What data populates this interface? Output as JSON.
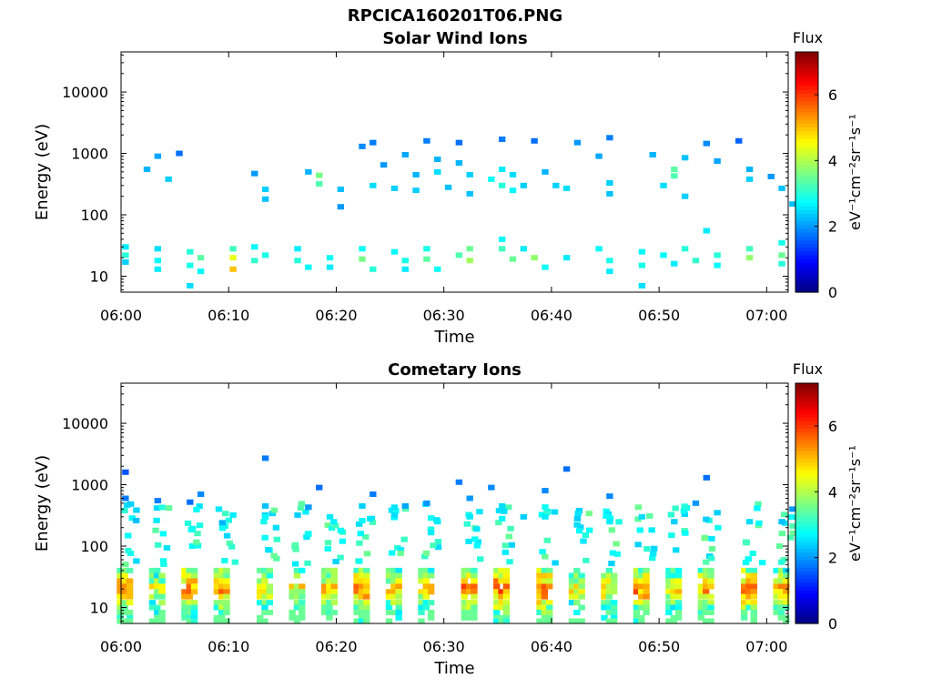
{
  "figure": {
    "title": "RPCICA160201T06.PNG"
  },
  "colors": {
    "background": "#ffffff",
    "axis": "#000000",
    "colormap": [
      "#00007f",
      "#0000ff",
      "#007fff",
      "#00ffff",
      "#7fff7f",
      "#ffff00",
      "#ff7f00",
      "#ff0000",
      "#7f0000"
    ]
  },
  "chart_data": [
    {
      "type": "heatmap",
      "title": "Solar Wind Ions",
      "xlabel": "Time",
      "ylabel": "Energy (eV)",
      "y_scale": "log",
      "xlim": [
        "06:00",
        "07:02"
      ],
      "ylim": [
        5.5,
        45000
      ],
      "x_ticks": [
        "06:00",
        "06:10",
        "06:20",
        "06:30",
        "06:40",
        "06:50",
        "07:00"
      ],
      "y_ticks": [
        "10",
        "100",
        "1000",
        "10000"
      ],
      "colorbar": {
        "label": "Flux",
        "unit": "eV⁻¹cm⁻²sr⁻¹s⁻¹",
        "range": [
          0,
          7.3
        ],
        "ticks": [
          "0",
          "2",
          "4",
          "6"
        ]
      },
      "cells": [
        [
          "06:00",
          30,
          2.6
        ],
        [
          "06:00",
          22,
          3.0
        ],
        [
          "06:00",
          17,
          2.4
        ],
        [
          "06:03",
          28,
          2.5
        ],
        [
          "06:03",
          18,
          2.7
        ],
        [
          "06:03",
          13,
          2.6
        ],
        [
          "06:06",
          25,
          3.0
        ],
        [
          "06:06",
          15,
          2.9
        ],
        [
          "06:06",
          7,
          2.5
        ],
        [
          "06:07",
          20,
          3.4
        ],
        [
          "06:07",
          12,
          2.7
        ],
        [
          "06:10",
          28,
          3.2
        ],
        [
          "06:10",
          20,
          4.4
        ],
        [
          "06:10",
          13,
          5.0
        ],
        [
          "06:12",
          30,
          2.7
        ],
        [
          "06:12",
          18,
          3.1
        ],
        [
          "06:13",
          22,
          2.9
        ],
        [
          "06:16",
          28,
          2.6
        ],
        [
          "06:16",
          18,
          3.0
        ],
        [
          "06:17",
          14,
          2.7
        ],
        [
          "06:19",
          20,
          2.8
        ],
        [
          "06:19",
          14,
          2.6
        ],
        [
          "06:22",
          28,
          2.8
        ],
        [
          "06:22",
          19,
          3.6
        ],
        [
          "06:23",
          13,
          3.0
        ],
        [
          "06:25",
          25,
          2.7
        ],
        [
          "06:26",
          18,
          2.9
        ],
        [
          "06:26",
          13,
          2.6
        ],
        [
          "06:28",
          28,
          2.9
        ],
        [
          "06:28",
          19,
          3.4
        ],
        [
          "06:29",
          13,
          2.8
        ],
        [
          "06:31",
          22,
          3.3
        ],
        [
          "06:32",
          28,
          3.5
        ],
        [
          "06:32",
          18,
          3.9
        ],
        [
          "06:35",
          40,
          2.7
        ],
        [
          "06:35",
          28,
          3.2
        ],
        [
          "06:36",
          19,
          3.5
        ],
        [
          "06:37",
          28,
          2.6
        ],
        [
          "06:38",
          20,
          3.8
        ],
        [
          "06:39",
          14,
          2.8
        ],
        [
          "06:41",
          20,
          2.6
        ],
        [
          "06:44",
          28,
          2.7
        ],
        [
          "06:45",
          18,
          2.9
        ],
        [
          "06:45",
          12,
          2.6
        ],
        [
          "06:48",
          25,
          2.7
        ],
        [
          "06:48",
          15,
          2.9
        ],
        [
          "06:48",
          7,
          2.5
        ],
        [
          "06:50",
          22,
          2.7
        ],
        [
          "06:51",
          16,
          2.6
        ],
        [
          "06:52",
          28,
          3.0
        ],
        [
          "06:53",
          18,
          3.1
        ],
        [
          "06:54",
          55,
          2.6
        ],
        [
          "06:55",
          22,
          3.0
        ],
        [
          "06:55",
          15,
          2.7
        ],
        [
          "06:58",
          28,
          3.2
        ],
        [
          "06:58",
          20,
          3.8
        ],
        [
          "07:01",
          35,
          2.9
        ],
        [
          "07:01",
          22,
          3.5
        ],
        [
          "07:01",
          16,
          3.0
        ],
        [
          "06:02",
          550,
          2.2
        ],
        [
          "06:03",
          900,
          2.1
        ],
        [
          "06:04",
          380,
          2.4
        ],
        [
          "06:05",
          1000,
          1.7
        ],
        [
          "06:12",
          470,
          2.0
        ],
        [
          "06:13",
          260,
          2.4
        ],
        [
          "06:13",
          180,
          2.3
        ],
        [
          "06:17",
          500,
          2.2
        ],
        [
          "06:18",
          440,
          3.6
        ],
        [
          "06:18",
          320,
          3.3
        ],
        [
          "06:20",
          260,
          2.3
        ],
        [
          "06:20",
          135,
          2.0
        ],
        [
          "06:22",
          1300,
          1.9
        ],
        [
          "06:23",
          1500,
          1.8
        ],
        [
          "06:23",
          300,
          2.5
        ],
        [
          "06:24",
          650,
          2.0
        ],
        [
          "06:25",
          270,
          2.4
        ],
        [
          "06:26",
          950,
          2.1
        ],
        [
          "06:27",
          450,
          2.2
        ],
        [
          "06:27",
          250,
          2.4
        ],
        [
          "06:28",
          1600,
          1.8
        ],
        [
          "06:29",
          800,
          2.2
        ],
        [
          "06:29",
          500,
          2.5
        ],
        [
          "06:30",
          280,
          2.3
        ],
        [
          "06:31",
          1500,
          1.7
        ],
        [
          "06:31",
          700,
          2.2
        ],
        [
          "06:32",
          450,
          2.4
        ],
        [
          "06:32",
          220,
          2.3
        ],
        [
          "06:34",
          380,
          2.8
        ],
        [
          "06:35",
          300,
          3.0
        ],
        [
          "06:35",
          550,
          2.6
        ],
        [
          "06:35",
          1700,
          1.8
        ],
        [
          "06:36",
          450,
          2.5
        ],
        [
          "06:36",
          250,
          2.7
        ],
        [
          "06:37",
          300,
          2.4
        ],
        [
          "06:38",
          1600,
          1.7
        ],
        [
          "06:39",
          500,
          2.2
        ],
        [
          "06:40",
          300,
          2.4
        ],
        [
          "06:41",
          270,
          2.5
        ],
        [
          "06:42",
          1500,
          2.0
        ],
        [
          "06:44",
          900,
          2.1
        ],
        [
          "06:45",
          1800,
          1.8
        ],
        [
          "06:45",
          330,
          2.4
        ],
        [
          "06:45",
          220,
          2.3
        ],
        [
          "06:49",
          950,
          2.2
        ],
        [
          "06:50",
          300,
          2.5
        ],
        [
          "06:51",
          550,
          3.4
        ],
        [
          "06:51",
          430,
          3.3
        ],
        [
          "06:52",
          850,
          2.3
        ],
        [
          "06:52",
          200,
          2.4
        ],
        [
          "06:54",
          1450,
          1.9
        ],
        [
          "06:55",
          750,
          2.1
        ],
        [
          "06:57",
          1600,
          1.6
        ],
        [
          "06:58",
          550,
          2.2
        ],
        [
          "06:58",
          380,
          2.4
        ],
        [
          "07:00",
          420,
          2.0
        ],
        [
          "07:01",
          270,
          2.3
        ],
        [
          "07:02",
          150,
          2.3
        ]
      ]
    },
    {
      "type": "heatmap",
      "title": "Cometary Ions",
      "xlabel": "Time",
      "ylabel": "Energy (eV)",
      "y_scale": "log",
      "xlim": [
        "06:00",
        "07:02"
      ],
      "ylim": [
        5.5,
        45000
      ],
      "x_ticks": [
        "06:00",
        "06:10",
        "06:20",
        "06:30",
        "06:40",
        "06:50",
        "07:00"
      ],
      "y_ticks": [
        "10",
        "100",
        "1000",
        "10000"
      ],
      "colorbar": {
        "label": "Flux",
        "unit": "eV⁻¹cm⁻²sr⁻¹s⁻¹",
        "range": [
          0,
          7.3
        ],
        "ticks": [
          "0",
          "2",
          "4",
          "6"
        ]
      },
      "bursts": [
        [
          "06:00",
          6.2
        ],
        [
          "06:03",
          5.3
        ],
        [
          "06:06",
          6.3
        ],
        [
          "06:09",
          6.2
        ],
        [
          "06:13",
          5.5
        ],
        [
          "06:16",
          5.4
        ],
        [
          "06:19",
          5.8
        ],
        [
          "06:22",
          6.3
        ],
        [
          "06:25",
          5.6
        ],
        [
          "06:28",
          5.6
        ],
        [
          "06:32",
          6.3
        ],
        [
          "06:35",
          6.5
        ],
        [
          "06:39",
          6.4
        ],
        [
          "06:42",
          5.3
        ],
        [
          "06:45",
          5.6
        ],
        [
          "06:48",
          6.2
        ],
        [
          "06:51",
          5.5
        ],
        [
          "06:54",
          6.0
        ],
        [
          "06:58",
          6.3
        ],
        [
          "07:01",
          5.8
        ]
      ],
      "cells": [
        [
          "06:00",
          1600,
          1.5
        ],
        [
          "06:00",
          600,
          1.8
        ],
        [
          "06:01",
          260,
          2.3
        ],
        [
          "06:03",
          550,
          1.8
        ],
        [
          "06:06",
          520,
          1.7
        ],
        [
          "06:07",
          700,
          1.9
        ],
        [
          "06:09",
          240,
          2.2
        ],
        [
          "06:10",
          320,
          2.6
        ],
        [
          "06:13",
          2700,
          1.8
        ],
        [
          "06:13",
          450,
          2.3
        ],
        [
          "06:13",
          300,
          2.7
        ],
        [
          "06:14",
          200,
          2.5
        ],
        [
          "06:16",
          320,
          2.4
        ],
        [
          "06:17",
          430,
          2.0
        ],
        [
          "06:17",
          160,
          2.8
        ],
        [
          "06:18",
          900,
          1.7
        ],
        [
          "06:19",
          300,
          2.6
        ],
        [
          "06:20",
          180,
          2.8
        ],
        [
          "06:22",
          450,
          2.4
        ],
        [
          "06:22",
          260,
          2.7
        ],
        [
          "06:23",
          700,
          1.8
        ],
        [
          "06:25",
          320,
          2.5
        ],
        [
          "06:26",
          450,
          2.1
        ],
        [
          "06:28",
          500,
          2.0
        ],
        [
          "06:29",
          250,
          2.6
        ],
        [
          "06:31",
          1100,
          1.8
        ],
        [
          "06:32",
          600,
          2.0
        ],
        [
          "06:32",
          300,
          2.6
        ],
        [
          "06:34",
          900,
          1.9
        ],
        [
          "06:35",
          450,
          2.5
        ],
        [
          "06:35",
          280,
          2.7
        ],
        [
          "06:37",
          300,
          2.4
        ],
        [
          "06:39",
          800,
          1.9
        ],
        [
          "06:39",
          300,
          2.6
        ],
        [
          "06:41",
          1800,
          1.7
        ],
        [
          "06:42",
          280,
          2.4
        ],
        [
          "06:45",
          650,
          1.9
        ],
        [
          "06:45",
          250,
          2.6
        ],
        [
          "06:48",
          300,
          2.5
        ],
        [
          "06:51",
          250,
          2.4
        ],
        [
          "06:53",
          500,
          2.0
        ],
        [
          "06:54",
          1300,
          1.7
        ],
        [
          "06:55",
          350,
          2.4
        ],
        [
          "06:58",
          250,
          2.5
        ],
        [
          "07:01",
          250,
          2.3
        ],
        [
          "07:02",
          400,
          2.0
        ]
      ]
    }
  ]
}
